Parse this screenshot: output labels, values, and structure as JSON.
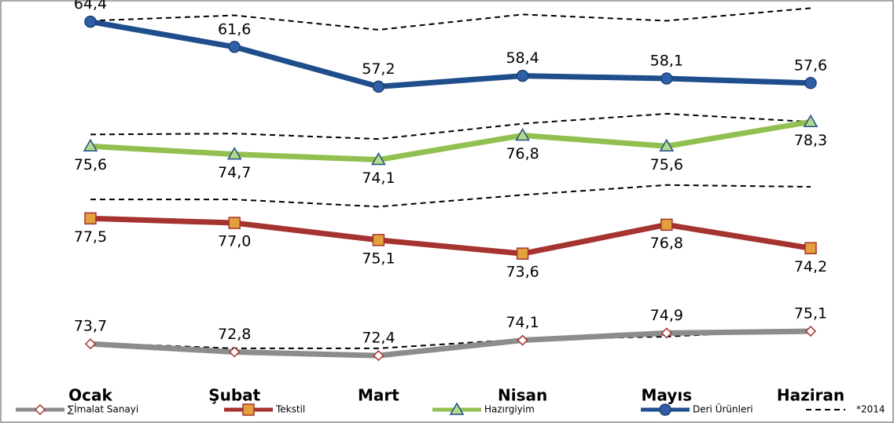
{
  "chart_data": {
    "type": "line",
    "categories": [
      "Ocak",
      "Şubat",
      "Mart",
      "Nisan",
      "Mayıs",
      "Haziran"
    ],
    "reference_name": "*2014",
    "reference_color": "#000000",
    "series": [
      {
        "name": "∑İmalat Sanayi",
        "color": "#8c8c8c",
        "marker": "diamond",
        "marker_fill": "#ffffff",
        "marker_stroke": "#a5332f",
        "label_position": "above",
        "ylim": [
          71.8,
          81.8
        ],
        "values": [
          73.7,
          72.8,
          72.4,
          74.1,
          74.9,
          75.1
        ],
        "value_labels": [
          "73,7",
          "72,8",
          "72,4",
          "74,1",
          "74,9",
          "75,1"
        ],
        "reference_values": [
          73.8,
          73.2,
          73.2,
          74.2,
          74.5,
          75.3
        ]
      },
      {
        "name": "Tekstil",
        "color": "#a5332f",
        "marker": "square",
        "marker_fill": "#e3a03c",
        "marker_stroke": "#a5332f",
        "label_position": "below",
        "ylim": [
          71.7,
          81.7
        ],
        "values": [
          77.5,
          77.0,
          75.1,
          73.6,
          76.8,
          74.2
        ],
        "value_labels": [
          "77,5",
          "77,0",
          "75,1",
          "73,6",
          "76,8",
          "74,2"
        ],
        "reference_values": [
          79.6,
          79.6,
          78.8,
          80.1,
          81.2,
          81.0
        ]
      },
      {
        "name": "Hazırgiyim",
        "color": "#92c050",
        "marker": "triangle",
        "marker_fill": "#b5d98a",
        "marker_stroke": "#1f4e8c",
        "label_position": "below",
        "ylim": [
          71.8,
          81.8
        ],
        "values": [
          75.6,
          74.7,
          74.1,
          76.8,
          75.6,
          78.3
        ],
        "value_labels": [
          "75,6",
          "74,7",
          "74,1",
          "76,8",
          "75,6",
          "78,3"
        ],
        "reference_values": [
          76.9,
          77.0,
          76.4,
          78.1,
          79.2,
          78.3
        ]
      },
      {
        "name": "Deri Ürünleri",
        "color": "#1f4e8c",
        "marker": "circle",
        "marker_fill": "#2f5fa8",
        "marker_stroke": "#1f3f70",
        "label_position": "above",
        "ylim": [
          56.8,
          66.8
        ],
        "values": [
          64.4,
          61.6,
          57.2,
          58.4,
          58.1,
          57.6
        ],
        "value_labels": [
          "64,4",
          "61,6",
          "57,2",
          "58,4",
          "58,1",
          "57,6"
        ],
        "reference_values": [
          64.5,
          65.1,
          63.5,
          65.2,
          64.5,
          65.9
        ]
      }
    ]
  }
}
